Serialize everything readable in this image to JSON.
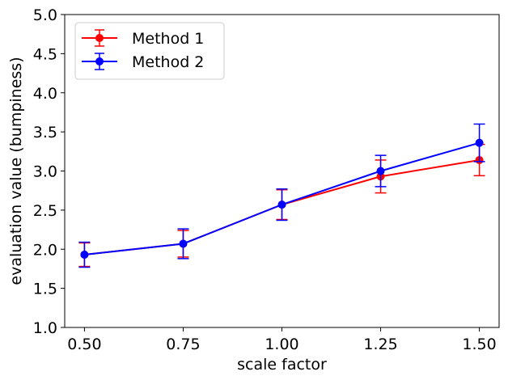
{
  "chart_data": {
    "type": "line",
    "title": "",
    "xlabel": "scale factor",
    "ylabel": "evaluation value (bumpiness)",
    "xlim": [
      0.45,
      1.55
    ],
    "ylim": [
      1.0,
      5.0
    ],
    "x_ticks": [
      0.5,
      0.75,
      1.0,
      1.25,
      1.5
    ],
    "x_tick_labels": [
      "0.50",
      "0.75",
      "1.00",
      "1.25",
      "1.50"
    ],
    "y_ticks": [
      1.0,
      1.5,
      2.0,
      2.5,
      3.0,
      3.5,
      4.0,
      4.5,
      5.0
    ],
    "y_tick_labels": [
      "1.0",
      "1.5",
      "2.0",
      "2.5",
      "3.0",
      "3.5",
      "4.0",
      "4.5",
      "5.0"
    ],
    "grid": false,
    "legend_position": "top-left",
    "x": [
      0.5,
      0.75,
      1.0,
      1.25,
      1.5
    ],
    "series": [
      {
        "name": "Method 1",
        "color": "#ff0000",
        "values": [
          1.93,
          2.07,
          2.57,
          2.93,
          3.14
        ],
        "errors": [
          0.15,
          0.17,
          0.19,
          0.21,
          0.2
        ]
      },
      {
        "name": "Method 2",
        "color": "#0000ff",
        "values": [
          1.93,
          2.07,
          2.57,
          3.0,
          3.36
        ],
        "errors": [
          0.16,
          0.19,
          0.2,
          0.2,
          0.24
        ]
      }
    ]
  }
}
